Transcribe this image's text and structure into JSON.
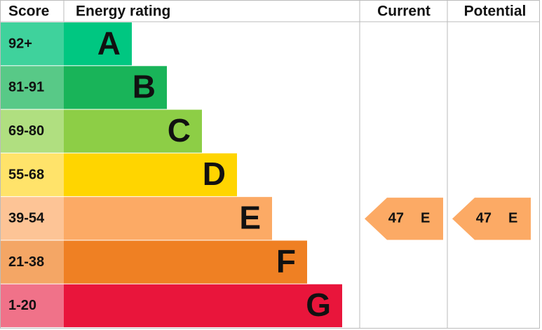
{
  "header": {
    "score": "Score",
    "rating": "Energy rating",
    "current": "Current",
    "potential": "Potential"
  },
  "bands": [
    {
      "score": "92+",
      "letter": "A",
      "color": "#00c781",
      "light": "#3fd29c"
    },
    {
      "score": "81-91",
      "letter": "B",
      "color": "#19b459",
      "light": "#58c987"
    },
    {
      "score": "69-80",
      "letter": "C",
      "color": "#8dce46",
      "light": "#b0df80"
    },
    {
      "score": "55-68",
      "letter": "D",
      "color": "#ffd500",
      "light": "#ffe36a"
    },
    {
      "score": "39-54",
      "letter": "E",
      "color": "#fcaa65",
      "light": "#fdc496"
    },
    {
      "score": "21-38",
      "letter": "F",
      "color": "#ef8023",
      "light": "#f4a665"
    },
    {
      "score": "1-20",
      "letter": "G",
      "color": "#e9153b",
      "light": "#f07289"
    }
  ],
  "current": {
    "value": 47,
    "letter": "E"
  },
  "potential": {
    "value": 47,
    "letter": "E"
  }
}
